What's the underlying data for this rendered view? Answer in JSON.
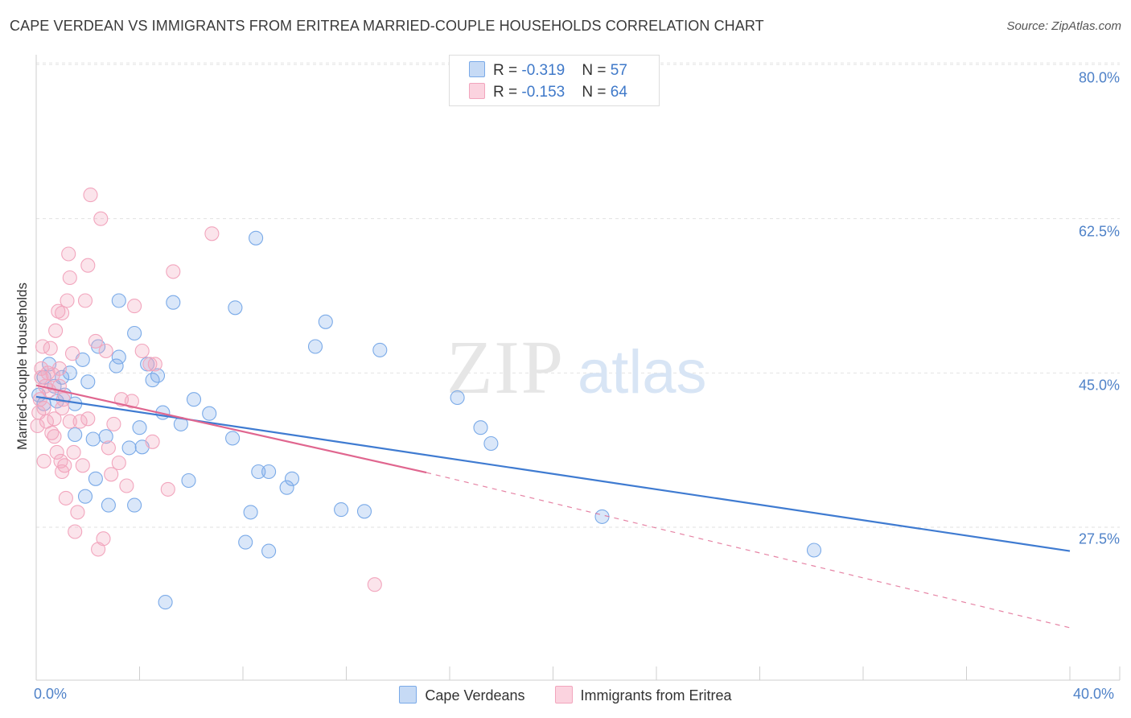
{
  "chart_data": {
    "type": "scatter",
    "title": "CAPE VERDEAN VS IMMIGRANTS FROM ERITREA MARRIED-COUPLE HOUSEHOLDS CORRELATION CHART",
    "source": "Source: ZipAtlas.com",
    "xlabel": "",
    "ylabel": "Married-couple Households",
    "xlim": [
      0,
      40
    ],
    "ylim": [
      10,
      82
    ],
    "x_tick_labels": [
      "0.0%",
      "40.0%"
    ],
    "y_ticks": [
      27.5,
      45.0,
      62.5,
      80.0
    ],
    "y_tick_labels": [
      "27.5%",
      "45.0%",
      "62.5%",
      "80.0%"
    ],
    "grid": true,
    "legend_position": "top-center",
    "watermark": "ZIPatlas",
    "legend": [
      {
        "name": "Cape Verdeans",
        "r_label": "R = ",
        "r_value": "-0.319",
        "n_label": "N = ",
        "n_value": "57",
        "color": "#7aaae8"
      },
      {
        "name": "Immigrants from Eritrea",
        "r_label": "R = ",
        "r_value": "-0.153",
        "n_label": "N = ",
        "n_value": "64",
        "color": "#f2a5bd"
      }
    ],
    "series": [
      {
        "name": "Cape Verdeans",
        "color": "#7aaae8",
        "trend": {
          "x0": 0,
          "y0": 42.3,
          "x1": 40,
          "y1": 24.8,
          "style": "solid",
          "color": "#3f7bd1"
        },
        "points": [
          [
            0.1,
            42.5
          ],
          [
            0.3,
            41.5
          ],
          [
            0.3,
            44.5
          ],
          [
            0.5,
            46.0
          ],
          [
            0.7,
            43.5
          ],
          [
            0.8,
            41.8
          ],
          [
            1.0,
            44.5
          ],
          [
            1.1,
            42.5
          ],
          [
            1.3,
            45.0
          ],
          [
            1.5,
            41.5
          ],
          [
            1.5,
            38.0
          ],
          [
            1.8,
            46.5
          ],
          [
            1.9,
            31.0
          ],
          [
            2.0,
            44.0
          ],
          [
            2.2,
            37.5
          ],
          [
            2.3,
            33.0
          ],
          [
            2.4,
            48.0
          ],
          [
            2.7,
            37.8
          ],
          [
            2.8,
            30.0
          ],
          [
            3.1,
            45.8
          ],
          [
            3.2,
            46.8
          ],
          [
            3.2,
            53.2
          ],
          [
            3.6,
            36.5
          ],
          [
            3.8,
            30.0
          ],
          [
            3.8,
            49.5
          ],
          [
            4.0,
            38.8
          ],
          [
            4.1,
            36.6
          ],
          [
            4.3,
            46.0
          ],
          [
            4.5,
            44.2
          ],
          [
            4.7,
            44.7
          ],
          [
            4.9,
            40.5
          ],
          [
            5.0,
            19.0
          ],
          [
            5.3,
            53.0
          ],
          [
            5.6,
            39.2
          ],
          [
            5.9,
            32.8
          ],
          [
            6.1,
            42.0
          ],
          [
            6.7,
            40.4
          ],
          [
            7.6,
            37.6
          ],
          [
            7.7,
            52.4
          ],
          [
            8.1,
            25.8
          ],
          [
            8.3,
            29.2
          ],
          [
            8.5,
            60.3
          ],
          [
            8.6,
            33.8
          ],
          [
            9.0,
            24.8
          ],
          [
            9.0,
            33.8
          ],
          [
            9.7,
            32.0
          ],
          [
            9.9,
            33.0
          ],
          [
            10.8,
            48.0
          ],
          [
            11.2,
            50.8
          ],
          [
            11.8,
            29.5
          ],
          [
            12.7,
            29.3
          ],
          [
            13.3,
            47.6
          ],
          [
            16.3,
            42.2
          ],
          [
            17.2,
            38.8
          ],
          [
            17.6,
            37.0
          ],
          [
            21.9,
            28.7
          ],
          [
            30.1,
            24.9
          ]
        ]
      },
      {
        "name": "Immigrants from Eritrea",
        "color": "#f2a5bd",
        "trend": {
          "x0": 0,
          "y0": 43.6,
          "x1": 15.1,
          "y1": 33.7,
          "style": "solid",
          "color": "#e0668f",
          "ext_x1": 40,
          "ext_y1": 16.1,
          "ext_style": "dashed"
        },
        "points": [
          [
            0.05,
            39.0
          ],
          [
            0.1,
            40.5
          ],
          [
            0.15,
            42.0
          ],
          [
            0.2,
            44.5
          ],
          [
            0.2,
            45.5
          ],
          [
            0.25,
            48.0
          ],
          [
            0.3,
            41.0
          ],
          [
            0.35,
            43.5
          ],
          [
            0.4,
            39.5
          ],
          [
            0.45,
            45.0
          ],
          [
            0.5,
            43.0
          ],
          [
            0.55,
            47.8
          ],
          [
            0.6,
            38.2
          ],
          [
            0.65,
            44.8
          ],
          [
            0.7,
            39.8
          ],
          [
            0.7,
            37.8
          ],
          [
            0.75,
            49.8
          ],
          [
            0.8,
            36.0
          ],
          [
            0.85,
            52.0
          ],
          [
            0.9,
            43.5
          ],
          [
            0.9,
            45.5
          ],
          [
            0.95,
            35.0
          ],
          [
            1.0,
            33.8
          ],
          [
            1.0,
            51.8
          ],
          [
            1.05,
            42.0
          ],
          [
            1.1,
            34.5
          ],
          [
            1.15,
            30.8
          ],
          [
            1.2,
            53.2
          ],
          [
            1.25,
            58.5
          ],
          [
            1.3,
            55.8
          ],
          [
            1.3,
            39.5
          ],
          [
            1.4,
            47.2
          ],
          [
            1.45,
            36.0
          ],
          [
            1.5,
            27.0
          ],
          [
            1.6,
            29.2
          ],
          [
            1.7,
            39.5
          ],
          [
            1.8,
            34.5
          ],
          [
            1.9,
            53.2
          ],
          [
            2.0,
            57.2
          ],
          [
            2.0,
            39.8
          ],
          [
            2.1,
            65.2
          ],
          [
            2.3,
            48.6
          ],
          [
            2.4,
            25.0
          ],
          [
            2.5,
            62.5
          ],
          [
            2.6,
            26.2
          ],
          [
            2.7,
            47.5
          ],
          [
            2.8,
            36.5
          ],
          [
            2.9,
            33.5
          ],
          [
            3.0,
            39.2
          ],
          [
            3.2,
            34.8
          ],
          [
            3.3,
            42.0
          ],
          [
            3.5,
            32.2
          ],
          [
            3.7,
            41.8
          ],
          [
            3.8,
            52.6
          ],
          [
            4.1,
            47.5
          ],
          [
            4.4,
            46.0
          ],
          [
            4.5,
            37.2
          ],
          [
            4.6,
            46.0
          ],
          [
            5.1,
            31.8
          ],
          [
            5.3,
            56.5
          ],
          [
            6.8,
            60.8
          ],
          [
            13.1,
            21.0
          ],
          [
            0.3,
            35.0
          ],
          [
            1.0,
            41.0
          ]
        ]
      }
    ]
  }
}
